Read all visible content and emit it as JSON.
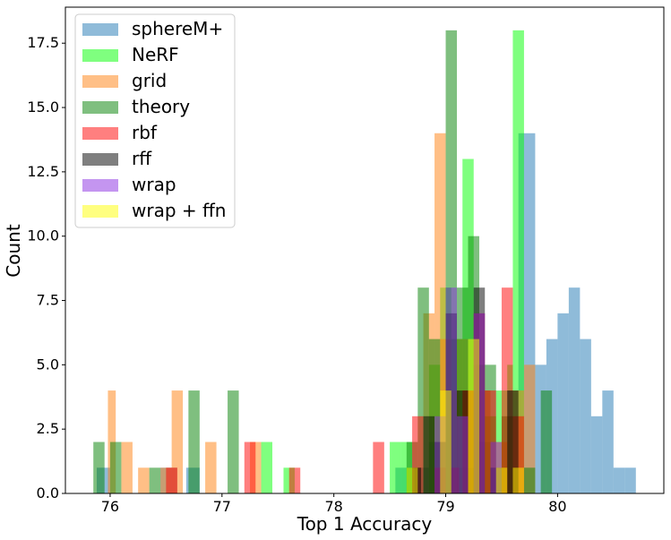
{
  "chart_data": {
    "type": "bar",
    "subtype": "histogram-overlay",
    "title": "",
    "xlabel": "Top 1 Accuracy",
    "ylabel": "Count",
    "xlim": [
      75.6,
      80.95
    ],
    "ylim": [
      0,
      18.9
    ],
    "xticks": [
      "76",
      "77",
      "78",
      "79",
      "80"
    ],
    "yticks": [
      "0.0",
      "2.5",
      "5.0",
      "7.5",
      "10.0",
      "12.5",
      "15.0",
      "17.5"
    ],
    "legend_position": "upper-left",
    "grid": false,
    "series": [
      {
        "name": "sphereM+",
        "color": "#1f77b4",
        "opacity": 0.5,
        "bins": [
          [
            75.88,
            76.0,
            1
          ],
          [
            76.45,
            76.6,
            1
          ],
          [
            76.68,
            76.8,
            1
          ],
          [
            78.55,
            78.7,
            1
          ],
          [
            78.72,
            78.85,
            1
          ],
          [
            78.85,
            79.0,
            2
          ],
          [
            79.1,
            79.25,
            1
          ],
          [
            79.3,
            79.45,
            2
          ],
          [
            79.55,
            79.65,
            4
          ],
          [
            79.65,
            79.8,
            14
          ],
          [
            79.8,
            79.9,
            5
          ],
          [
            79.9,
            80.0,
            6
          ],
          [
            80.0,
            80.1,
            7
          ],
          [
            80.1,
            80.2,
            8
          ],
          [
            80.2,
            80.3,
            6
          ],
          [
            80.3,
            80.4,
            3
          ],
          [
            80.4,
            80.5,
            4
          ],
          [
            80.5,
            80.6,
            1
          ],
          [
            80.6,
            80.7,
            1
          ]
        ]
      },
      {
        "name": "NeRF",
        "color": "#00ff00",
        "opacity": 0.5,
        "bins": [
          [
            77.35,
            77.45,
            2
          ],
          [
            77.55,
            77.65,
            1
          ],
          [
            78.5,
            78.6,
            2
          ],
          [
            78.6,
            78.7,
            2
          ],
          [
            78.85,
            78.95,
            5
          ],
          [
            78.95,
            79.05,
            8
          ],
          [
            79.05,
            79.15,
            6
          ],
          [
            79.15,
            79.25,
            13
          ],
          [
            79.25,
            79.35,
            5
          ],
          [
            79.35,
            79.45,
            3
          ],
          [
            79.45,
            79.55,
            4
          ],
          [
            79.55,
            79.6,
            5
          ],
          [
            79.6,
            79.7,
            18
          ]
        ]
      },
      {
        "name": "grid",
        "color": "#ff7f0e",
        "opacity": 0.5,
        "bins": [
          [
            75.98,
            76.05,
            4
          ],
          [
            76.1,
            76.2,
            2
          ],
          [
            76.25,
            76.35,
            1
          ],
          [
            76.45,
            76.55,
            1
          ],
          [
            76.55,
            76.65,
            4
          ],
          [
            76.85,
            76.95,
            2
          ],
          [
            77.25,
            77.35,
            2
          ],
          [
            78.8,
            78.9,
            7
          ],
          [
            78.9,
            79.0,
            14
          ],
          [
            78.95,
            79.05,
            6
          ],
          [
            79.05,
            79.12,
            4
          ],
          [
            79.1,
            79.2,
            6
          ],
          [
            79.2,
            79.3,
            4
          ],
          [
            79.3,
            79.4,
            4
          ],
          [
            79.45,
            79.55,
            2
          ],
          [
            79.6,
            79.7,
            4
          ],
          [
            79.7,
            79.8,
            5
          ]
        ]
      },
      {
        "name": "theory",
        "color": "#008000",
        "opacity": 0.5,
        "bins": [
          [
            75.85,
            75.95,
            2
          ],
          [
            76.0,
            76.1,
            2
          ],
          [
            76.35,
            76.45,
            1
          ],
          [
            76.7,
            76.8,
            4
          ],
          [
            77.05,
            77.15,
            4
          ],
          [
            78.65,
            78.75,
            2
          ],
          [
            78.75,
            78.85,
            8
          ],
          [
            78.85,
            78.95,
            6
          ],
          [
            79.0,
            79.1,
            18
          ],
          [
            79.1,
            79.2,
            8
          ],
          [
            79.2,
            79.3,
            10
          ],
          [
            79.35,
            79.45,
            5
          ],
          [
            79.5,
            79.6,
            3
          ],
          [
            79.7,
            79.8,
            1
          ],
          [
            79.85,
            79.95,
            4
          ]
        ]
      },
      {
        "name": "rbf",
        "color": "#ff0000",
        "opacity": 0.5,
        "bins": [
          [
            76.5,
            76.6,
            1
          ],
          [
            77.2,
            77.3,
            2
          ],
          [
            77.6,
            77.7,
            1
          ],
          [
            78.35,
            78.45,
            2
          ],
          [
            78.7,
            78.8,
            3
          ],
          [
            78.9,
            79.0,
            1
          ],
          [
            79.05,
            79.12,
            1
          ],
          [
            79.15,
            79.25,
            4
          ],
          [
            79.25,
            79.35,
            7
          ],
          [
            79.35,
            79.45,
            4
          ],
          [
            79.5,
            79.6,
            8
          ],
          [
            79.6,
            79.7,
            3
          ]
        ]
      },
      {
        "name": "rff",
        "color": "#000000",
        "opacity": 0.5,
        "bins": [
          [
            78.7,
            78.78,
            1
          ],
          [
            78.8,
            78.9,
            3
          ],
          [
            78.9,
            79.0,
            2
          ],
          [
            79.0,
            79.1,
            7
          ],
          [
            79.1,
            79.2,
            4
          ],
          [
            79.25,
            79.35,
            8
          ],
          [
            79.4,
            79.5,
            1
          ],
          [
            79.55,
            79.65,
            4
          ]
        ]
      },
      {
        "name": "wrap",
        "color": "#8a2be2",
        "opacity": 0.5,
        "bins": [
          [
            78.9,
            79.0,
            3
          ],
          [
            79.0,
            79.1,
            8
          ],
          [
            79.1,
            79.2,
            3
          ],
          [
            79.25,
            79.35,
            7
          ],
          [
            79.4,
            79.5,
            2
          ]
        ]
      },
      {
        "name": "wrap + ffn",
        "color": "#ffff00",
        "opacity": 0.5,
        "bins": [
          [
            78.65,
            78.75,
            1
          ],
          [
            78.95,
            79.05,
            4
          ],
          [
            79.2,
            79.3,
            6
          ],
          [
            79.45,
            79.55,
            1
          ],
          [
            79.6,
            79.7,
            1
          ]
        ]
      }
    ]
  }
}
